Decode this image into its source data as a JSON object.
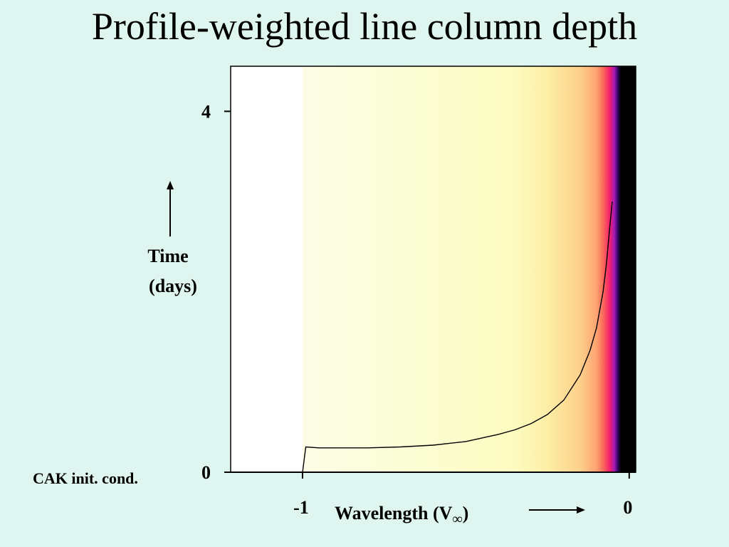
{
  "slide": {
    "title": "Profile-weighted line column depth"
  },
  "chart_data": {
    "type": "heatmap",
    "title": "Profile-weighted line column depth",
    "xlabel_text": "Wavelength (V",
    "xlabel_symbol": "∞",
    "xlabel_close": ")",
    "ylabel_line1": "Time",
    "ylabel_line2": "(days)",
    "xlim": [
      -1.22,
      0.02
    ],
    "ylim": [
      0,
      4.5
    ],
    "x_ticks": [
      {
        "value": -1,
        "label": "-1"
      },
      {
        "value": 0,
        "label": "0"
      }
    ],
    "y_ticks": [
      {
        "value": 0,
        "label": "0"
      },
      {
        "value": 4,
        "label": "4"
      }
    ],
    "annotation": "CAK init. cond.",
    "colormap": [
      {
        "x": -1.0,
        "color": "#fdfde6"
      },
      {
        "x": -0.7,
        "color": "#fbfdd6"
      },
      {
        "x": -0.35,
        "color": "#fdfcc0"
      },
      {
        "x": -0.25,
        "color": "#fdeea6"
      },
      {
        "x": -0.15,
        "color": "#fdd08a"
      },
      {
        "x": -0.1,
        "color": "#fca471"
      },
      {
        "x": -0.08,
        "color": "#fa6a5a"
      },
      {
        "x": -0.06,
        "color": "#f8206a"
      },
      {
        "x": -0.045,
        "color": "#a01ab8"
      },
      {
        "x": -0.035,
        "color": "#300860"
      },
      {
        "x": -0.025,
        "color": "#000000"
      },
      {
        "x": 0.0,
        "color": "#000000"
      }
    ],
    "colors": {
      "empty_region": "#ffffff",
      "curve": "#000000"
    },
    "curve": {
      "x": [
        -1.0,
        -0.99,
        -0.95,
        -0.8,
        -0.7,
        -0.6,
        -0.5,
        -0.4,
        -0.35,
        -0.3,
        -0.25,
        -0.2,
        -0.15,
        -0.12,
        -0.1,
        -0.08,
        -0.07,
        -0.06,
        -0.052
      ],
      "y": [
        0.0,
        0.28,
        0.27,
        0.27,
        0.28,
        0.3,
        0.34,
        0.42,
        0.47,
        0.54,
        0.64,
        0.8,
        1.08,
        1.35,
        1.6,
        2.0,
        2.3,
        2.7,
        3.0
      ]
    }
  }
}
